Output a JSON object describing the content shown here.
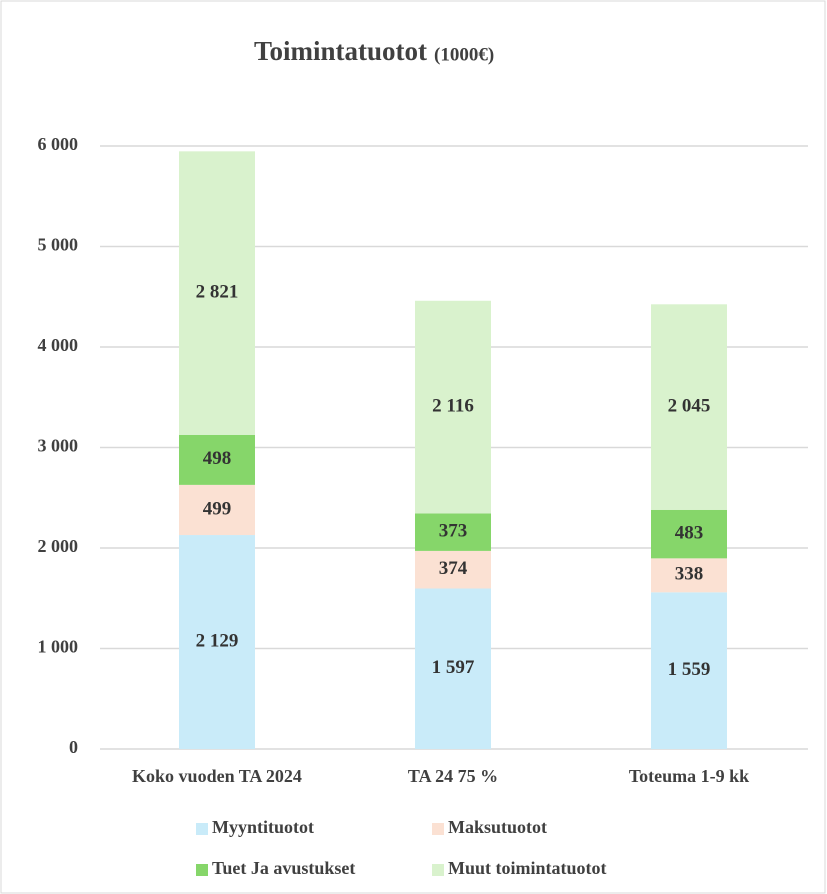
{
  "chart_data": {
    "type": "stacked_bar",
    "title": "Toimintatuotot",
    "subtitle": "(1000€)",
    "categories": [
      "Koko vuoden TA 2024",
      "TA 24 75 %",
      "Toteuma 1-9 kk"
    ],
    "series": [
      {
        "name": "Myyntituotot",
        "color": "#c9ebf9",
        "values": [
          2129,
          1597,
          1559
        ],
        "value_labels": [
          "2 129",
          "1 597",
          "1 559"
        ]
      },
      {
        "name": "Maksutuotot",
        "color": "#fbe1d3",
        "values": [
          499,
          374,
          338
        ],
        "value_labels": [
          "499",
          "374",
          "338"
        ]
      },
      {
        "name": "Tuet Ja avustukset",
        "color": "#86d66a",
        "values": [
          498,
          373,
          483
        ],
        "value_labels": [
          "498",
          "373",
          "483"
        ]
      },
      {
        "name": "Muut toimintatuotot",
        "color": "#d9f2cd",
        "values": [
          2821,
          2116,
          2045
        ],
        "value_labels": [
          "2 821",
          "2 116",
          "2 045"
        ]
      }
    ],
    "ylim": [
      0,
      6000
    ],
    "yticks": [
      0,
      {
        "value": 1000,
        "label": "1 000"
      },
      {
        "value": 2000,
        "label": "2 000"
      },
      {
        "value": 3000,
        "label": "3 000"
      },
      {
        "value": 4000,
        "label": "4 000"
      },
      {
        "value": 5000,
        "label": "5 000"
      },
      {
        "value": 6000,
        "label": "6 000"
      }
    ],
    "grid": true,
    "legend": "bottom"
  }
}
